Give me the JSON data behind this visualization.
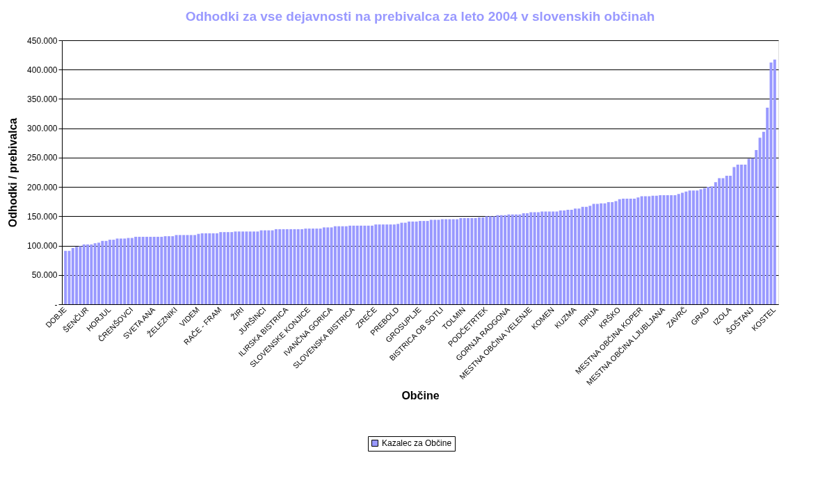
{
  "chart_data": {
    "type": "bar",
    "title": "Odhodki za vse dejavnosti na prebivalca za leto 2004 v slovenskih občinah",
    "xlabel": "Občine",
    "ylabel": "Odhodki / prebivalca",
    "categories": [
      "DOBJE",
      null,
      null,
      null,
      null,
      null,
      "ŠENČUR",
      null,
      null,
      null,
      null,
      null,
      "HORJUL",
      null,
      null,
      null,
      null,
      null,
      "ČRENŠOVCI",
      null,
      null,
      null,
      null,
      null,
      "SVETA ANA",
      null,
      null,
      null,
      null,
      null,
      "ŽELEZNIKI",
      null,
      null,
      null,
      null,
      null,
      "VIDEM",
      null,
      null,
      null,
      null,
      null,
      "RAČE - FRAM",
      null,
      null,
      null,
      null,
      null,
      "ŽIRI",
      null,
      null,
      null,
      null,
      null,
      "JURŠINCI",
      null,
      null,
      null,
      null,
      null,
      "ILIRSKA BISTRICA",
      null,
      null,
      null,
      null,
      null,
      "SLOVENSKE KONJICE",
      null,
      null,
      null,
      null,
      null,
      "IVANČNA GORICA",
      null,
      null,
      null,
      null,
      null,
      "SLOVENSKA BISTRICA",
      null,
      null,
      null,
      null,
      null,
      "ZREČE",
      null,
      null,
      null,
      null,
      null,
      "PREBOLD",
      null,
      null,
      null,
      null,
      null,
      "GROSUPLJE",
      null,
      null,
      null,
      null,
      null,
      "BISTRICA OB SOTLI",
      null,
      null,
      null,
      null,
      null,
      "TOLMIN",
      null,
      null,
      null,
      null,
      null,
      "PODČETRTEK",
      null,
      null,
      null,
      null,
      null,
      "GORNJA RADGONA",
      null,
      null,
      null,
      null,
      null,
      "MESTNA OBČINA VELENJE",
      null,
      null,
      null,
      null,
      null,
      "KOMEN",
      null,
      null,
      null,
      null,
      null,
      "KUZMA",
      null,
      null,
      null,
      null,
      null,
      "IDRIJA",
      null,
      null,
      null,
      null,
      null,
      "KRŠKO",
      null,
      null,
      null,
      null,
      null,
      "MESTNA OBČINA KOPER",
      null,
      null,
      null,
      null,
      null,
      "MESTNA OBČINA LJUBLJANA",
      null,
      null,
      null,
      null,
      null,
      "ZAVRČ",
      null,
      null,
      null,
      null,
      null,
      "GRAD",
      null,
      null,
      null,
      null,
      null,
      "IZOLA",
      null,
      null,
      null,
      null,
      null,
      "ŠOŠTANJ",
      null,
      null,
      null,
      null,
      null,
      "KOSTEL"
    ],
    "series": [
      {
        "name": "Kazalec za Občine",
        "color": "#9999ff",
        "values": [
          91000,
          91000,
          96000,
          98000,
          99000,
          102000,
          102000,
          102000,
          104000,
          105000,
          108000,
          108000,
          110000,
          110000,
          112000,
          112000,
          112000,
          113000,
          113000,
          115000,
          115000,
          115000,
          115000,
          115000,
          115000,
          115000,
          115000,
          116000,
          116000,
          116000,
          118000,
          118000,
          118000,
          118000,
          118000,
          118000,
          120000,
          121000,
          121000,
          121000,
          121000,
          121000,
          123000,
          123000,
          123000,
          123000,
          124000,
          124000,
          124000,
          124000,
          124000,
          124000,
          124000,
          126000,
          126000,
          126000,
          126000,
          128000,
          128000,
          128000,
          128000,
          128000,
          128000,
          128000,
          128000,
          129000,
          129000,
          129000,
          129000,
          129000,
          131000,
          131000,
          131000,
          133000,
          133000,
          133000,
          133000,
          134000,
          134000,
          134000,
          134000,
          134000,
          134000,
          134000,
          136000,
          136000,
          136000,
          136000,
          136000,
          136000,
          137000,
          139000,
          139000,
          141000,
          141000,
          141000,
          142000,
          142000,
          142000,
          144000,
          144000,
          144000,
          145000,
          145000,
          145000,
          145000,
          145000,
          147000,
          147000,
          147000,
          147000,
          147000,
          148000,
          148000,
          150000,
          150000,
          150000,
          152000,
          152000,
          152000,
          153000,
          153000,
          153000,
          153000,
          155000,
          155000,
          157000,
          157000,
          157000,
          158000,
          158000,
          158000,
          158000,
          158000,
          160000,
          160000,
          161000,
          161000,
          163000,
          163000,
          166000,
          166000,
          168000,
          171000,
          171000,
          172000,
          172000,
          174000,
          174000,
          176000,
          179000,
          180000,
          180000,
          180000,
          180000,
          182000,
          184000,
          184000,
          184000,
          185000,
          185000,
          186000,
          186000,
          186000,
          186000,
          186000,
          188000,
          190000,
          192000,
          194000,
          194000,
          194000,
          196000,
          198000,
          200000,
          201000,
          208000,
          215000,
          215000,
          219000,
          219000,
          234000,
          238000,
          238000,
          238000,
          248000,
          249000,
          263000,
          284000,
          294000,
          335000,
          412000,
          417000
        ]
      }
    ],
    "ylim": [
      0,
      450000
    ],
    "yticks": [
      {
        "value": 0,
        "label": "-"
      },
      {
        "value": 50000,
        "label": "50.000"
      },
      {
        "value": 100000,
        "label": "100.000"
      },
      {
        "value": 150000,
        "label": "150.000"
      },
      {
        "value": 200000,
        "label": "200.000"
      },
      {
        "value": 250000,
        "label": "250.000"
      },
      {
        "value": 300000,
        "label": "300.000"
      },
      {
        "value": 350000,
        "label": "350.000"
      },
      {
        "value": 400000,
        "label": "400.000"
      },
      {
        "value": 450000,
        "label": "450.000"
      }
    ],
    "grid": "y",
    "legend": "bottom"
  }
}
